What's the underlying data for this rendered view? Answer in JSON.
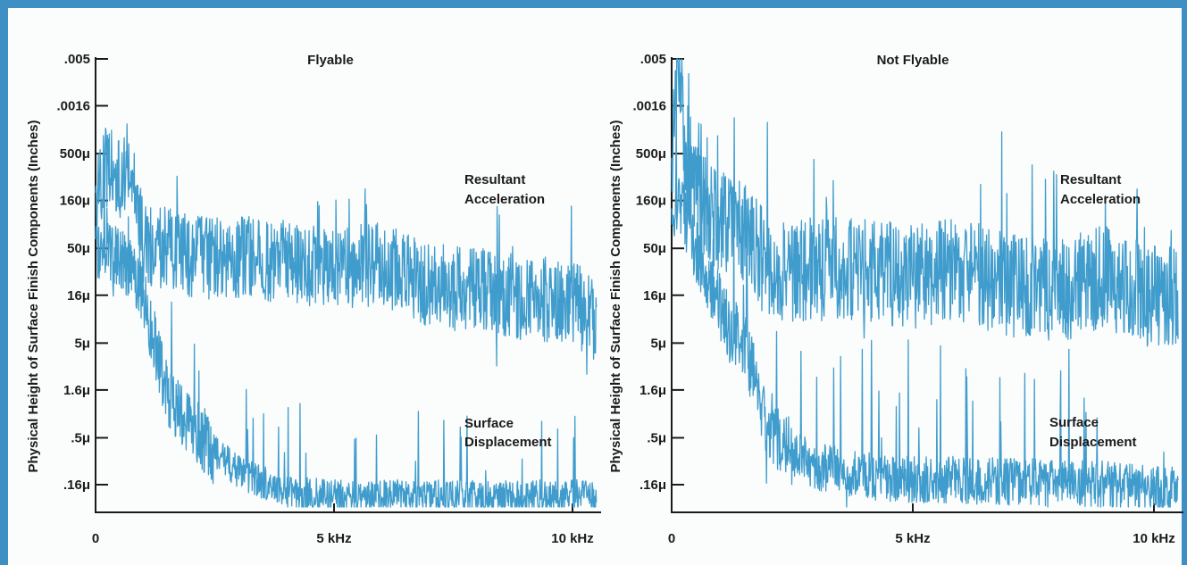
{
  "colors": {
    "frame": "#3d8fc4",
    "trace": "#3f9ccc",
    "ink": "#1b1b1b",
    "background": "#fbfcfc"
  },
  "ylabel": "Physical Height of Surface Finish Components (Inches)",
  "chart_data": [
    {
      "type": "line",
      "title": "Flyable",
      "ylabel": "Physical Height of Surface Finish Components (Inches)",
      "y_scale": "log",
      "yticks": [
        ".005",
        ".0016",
        "500μ",
        "160μ",
        "50μ",
        "16μ",
        "5μ",
        "1.6μ",
        ".5μ",
        ".16μ"
      ],
      "ytick_values": [
        0.005,
        0.0016,
        0.0005,
        0.00016,
        5e-05,
        1.6e-05,
        5e-06,
        1.6e-06,
        5e-07,
        1.6e-07
      ],
      "xticks": [
        "0",
        "5 kHz",
        "10 kHz"
      ],
      "xtick_values": [
        0,
        5,
        10
      ],
      "xlim": [
        0,
        10.5
      ],
      "ylim": [
        1e-07,
        0.005
      ],
      "annotations": [
        {
          "line1": "Resultant",
          "line2": "Acceleration"
        },
        {
          "line1": "Surface",
          "line2": "Displacement"
        }
      ],
      "series": [
        {
          "label": "Resultant Acceleration",
          "x": [
            0,
            0.25,
            0.5,
            0.75,
            1,
            2,
            3,
            4,
            5,
            6,
            7,
            8,
            9,
            10,
            10.5
          ],
          "y": [
            0.00015,
            0.0004,
            0.00025,
            0.00035,
            6e-05,
            4e-05,
            4e-05,
            3.5e-05,
            3e-05,
            3.5e-05,
            2e-05,
            1.8e-05,
            1.5e-05,
            1.4e-05,
            8e-06
          ]
        },
        {
          "label": "Surface Displacement",
          "x": [
            0,
            0.25,
            0.5,
            0.75,
            1,
            1.25,
            1.5,
            2,
            2.5,
            3,
            4,
            5,
            6,
            7,
            8,
            9,
            10,
            10.5
          ],
          "y": [
            5e-05,
            5e-05,
            4e-05,
            3e-05,
            1.5e-05,
            5e-06,
            1.5e-06,
            7e-07,
            3.5e-07,
            2.2e-07,
            1.3e-07,
            1.2e-07,
            1.2e-07,
            1.2e-07,
            1.2e-07,
            1.2e-07,
            1.2e-07,
            1.2e-07
          ]
        }
      ]
    },
    {
      "type": "line",
      "title": "Not Flyable",
      "ylabel": "Physical Height of Surface Finish Components (Inches)",
      "y_scale": "log",
      "yticks": [
        ".005",
        ".0016",
        "500μ",
        "160μ",
        "50μ",
        "16μ",
        "5μ",
        "1.6μ",
        ".5μ",
        ".16μ"
      ],
      "ytick_values": [
        0.005,
        0.0016,
        0.0005,
        0.00016,
        5e-05,
        1.6e-05,
        5e-06,
        1.6e-06,
        5e-07,
        1.6e-07
      ],
      "xticks": [
        "0",
        "5 kHz",
        "10 kHz"
      ],
      "xtick_values": [
        0,
        5,
        10
      ],
      "xlim": [
        0,
        10.5
      ],
      "ylim": [
        1e-07,
        0.005
      ],
      "annotations": [
        {
          "line1": "Resultant",
          "line2": "Acceleration"
        },
        {
          "line1": "Surface",
          "line2": "Displacement"
        }
      ],
      "series": [
        {
          "label": "Resultant Acceleration",
          "x": [
            0,
            0.15,
            0.3,
            0.6,
            1,
            1.5,
            2,
            3,
            4,
            5,
            6,
            7,
            8,
            9,
            10,
            10.5
          ],
          "y": [
            0.0003,
            0.005,
            0.0003,
            0.00015,
            0.0001,
            8e-05,
            3e-05,
            3e-05,
            3e-05,
            2.5e-05,
            3e-05,
            2e-05,
            1.8e-05,
            2.5e-05,
            1.5e-05,
            1.5e-05
          ]
        },
        {
          "label": "Surface Displacement",
          "x": [
            0,
            0.2,
            0.5,
            0.8,
            1.2,
            1.5,
            1.8,
            2,
            2.5,
            3,
            4,
            5,
            6,
            7,
            8,
            9,
            10,
            10.5
          ],
          "y": [
            0.0001,
            0.00015,
            5e-05,
            2e-05,
            7e-06,
            5e-06,
            1.5e-06,
            6e-07,
            3.5e-07,
            2.5e-07,
            2e-07,
            1.8e-07,
            1.8e-07,
            1.7e-07,
            1.7e-07,
            1.6e-07,
            1.4e-07,
            1.4e-07
          ]
        }
      ]
    }
  ]
}
